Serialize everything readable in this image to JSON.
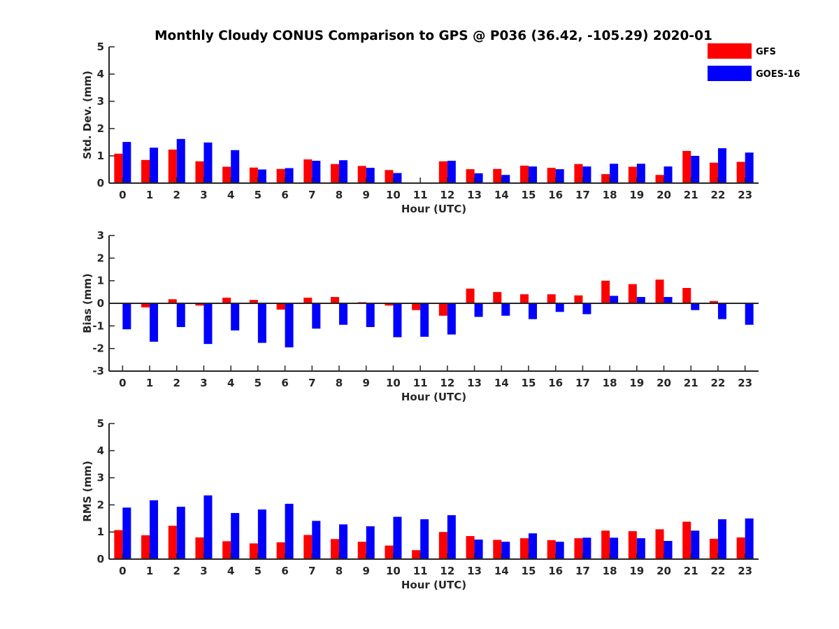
{
  "title": "Monthly Cloudy CONUS Comparison to GPS @ P036 (36.42, -105.29) 2020-01",
  "legend": {
    "position": "top-right",
    "entries": [
      {
        "name": "GFS",
        "color": "#ff0000"
      },
      {
        "name": "GOES-16",
        "color": "#0000ff"
      }
    ]
  },
  "chart_data": [
    {
      "type": "bar",
      "xlabel": "Hour (UTC)",
      "ylabel": "Std. Dev. (mm)",
      "ylim": [
        0,
        5
      ],
      "yticks": [
        0,
        1,
        2,
        3,
        4,
        5
      ],
      "grid": false,
      "categories": [
        "0",
        "1",
        "2",
        "3",
        "4",
        "5",
        "6",
        "7",
        "8",
        "9",
        "10",
        "11",
        "12",
        "13",
        "14",
        "15",
        "16",
        "17",
        "18",
        "19",
        "20",
        "21",
        "22",
        "23"
      ],
      "series": [
        {
          "name": "GFS",
          "color": "#ff0000",
          "values": [
            1.08,
            0.85,
            1.23,
            0.8,
            0.6,
            0.57,
            0.52,
            0.87,
            0.7,
            0.63,
            0.48,
            null,
            0.8,
            0.51,
            0.52,
            0.64,
            0.56,
            0.7,
            0.33,
            0.6,
            0.3,
            1.18,
            0.75,
            0.78
          ]
        },
        {
          "name": "GOES-16",
          "color": "#0000ff",
          "values": [
            1.51,
            1.3,
            1.62,
            1.49,
            1.21,
            0.5,
            0.55,
            0.82,
            0.84,
            0.56,
            0.37,
            null,
            0.82,
            0.36,
            0.3,
            0.61,
            0.51,
            0.61,
            0.71,
            0.71,
            0.61,
            1.0,
            1.28,
            1.12
          ]
        }
      ]
    },
    {
      "type": "bar",
      "xlabel": "Hour (UTC)",
      "ylabel": "Bias (mm)",
      "ylim": [
        -3,
        3
      ],
      "yticks": [
        -3,
        -2,
        -1,
        0,
        1,
        2,
        3
      ],
      "grid": false,
      "categories": [
        "0",
        "1",
        "2",
        "3",
        "4",
        "5",
        "6",
        "7",
        "8",
        "9",
        "10",
        "11",
        "12",
        "13",
        "14",
        "15",
        "16",
        "17",
        "18",
        "19",
        "20",
        "21",
        "22",
        "23"
      ],
      "series": [
        {
          "name": "GFS",
          "color": "#ff0000",
          "values": [
            0.0,
            -0.18,
            0.18,
            -0.1,
            0.25,
            0.15,
            -0.28,
            0.25,
            0.28,
            0.05,
            -0.1,
            -0.3,
            -0.55,
            0.65,
            0.5,
            0.4,
            0.4,
            0.35,
            1.0,
            0.85,
            1.05,
            0.68,
            0.1,
            0.03
          ]
        },
        {
          "name": "GOES-16",
          "color": "#0000ff",
          "values": [
            -1.15,
            -1.7,
            -1.05,
            -1.8,
            -1.2,
            -1.75,
            -1.95,
            -1.12,
            -0.95,
            -1.05,
            -1.5,
            -1.48,
            -1.38,
            -0.6,
            -0.55,
            -0.7,
            -0.38,
            -0.48,
            0.33,
            0.28,
            0.28,
            -0.3,
            -0.7,
            -0.95
          ]
        }
      ]
    },
    {
      "type": "bar",
      "xlabel": "Hour (UTC)",
      "ylabel": "RMS (mm)",
      "ylim": [
        0,
        5
      ],
      "yticks": [
        0,
        1,
        2,
        3,
        4,
        5
      ],
      "grid": false,
      "categories": [
        "0",
        "1",
        "2",
        "3",
        "4",
        "5",
        "6",
        "7",
        "8",
        "9",
        "10",
        "11",
        "12",
        "13",
        "14",
        "15",
        "16",
        "17",
        "18",
        "19",
        "20",
        "21",
        "22",
        "23"
      ],
      "series": [
        {
          "name": "GFS",
          "color": "#ff0000",
          "values": [
            1.07,
            0.88,
            1.23,
            0.8,
            0.66,
            0.58,
            0.62,
            0.89,
            0.74,
            0.64,
            0.5,
            0.33,
            1.0,
            0.85,
            0.71,
            0.77,
            0.7,
            0.77,
            1.05,
            1.03,
            1.1,
            1.38,
            0.75,
            0.8
          ]
        },
        {
          "name": "GOES-16",
          "color": "#0000ff",
          "values": [
            1.9,
            2.17,
            1.93,
            2.35,
            1.7,
            1.83,
            2.04,
            1.41,
            1.28,
            1.21,
            1.56,
            1.47,
            1.62,
            0.72,
            0.64,
            0.95,
            0.64,
            0.79,
            0.79,
            0.77,
            0.67,
            1.05,
            1.47,
            1.5
          ]
        }
      ]
    }
  ]
}
